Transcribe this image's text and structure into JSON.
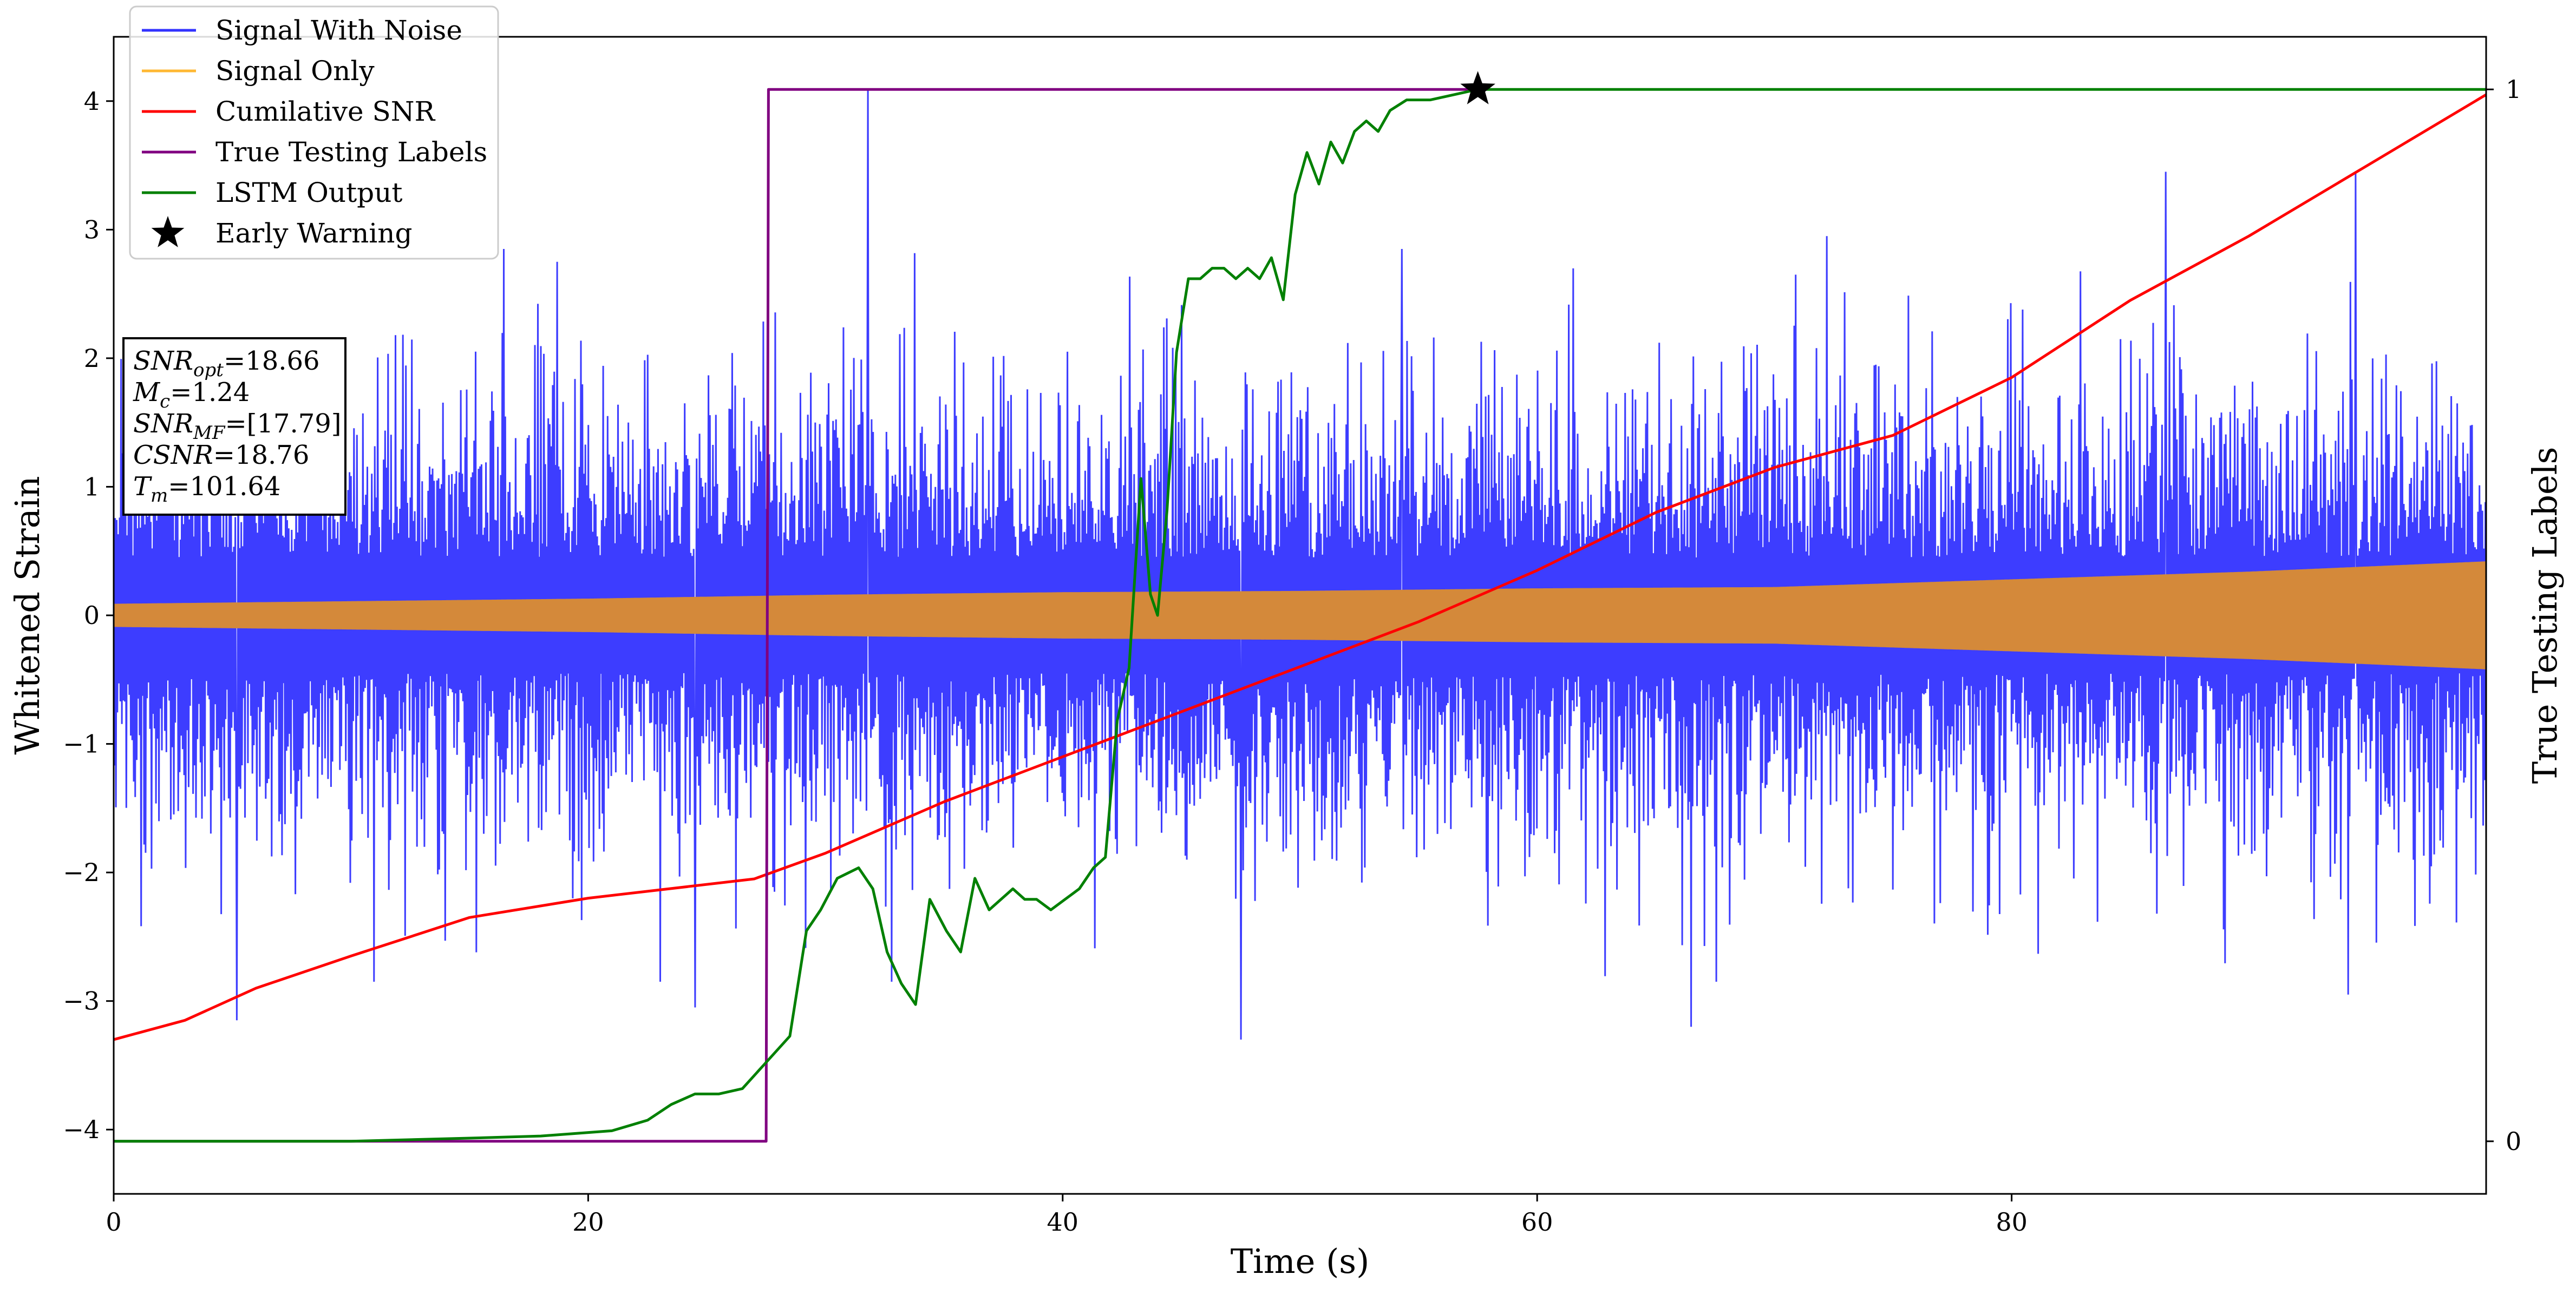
{
  "chart_data": {
    "type": "line",
    "xlabel": "Time (s)",
    "ylabel": "Whitened Strain",
    "y2label": "True Testing Labels",
    "xlim": [
      0,
      100
    ],
    "ylim": [
      -4.5,
      4.5
    ],
    "y2lim": [
      -0.05,
      1.05
    ],
    "x_ticks": [
      0,
      20,
      40,
      60,
      80
    ],
    "y_ticks": [
      -4,
      -3,
      -2,
      -1,
      0,
      1,
      2,
      3,
      4
    ],
    "y_tick_labels": [
      "−4",
      "−3",
      "−2",
      "−1",
      "0",
      "1",
      "2",
      "3",
      "4"
    ],
    "y2_ticks": [
      0,
      1
    ],
    "grid": false,
    "legend_position": "top-left",
    "series": [
      {
        "name": "Signal With Noise",
        "color": "#3333ff",
        "description_axis": "left",
        "x_range": [
          0,
          100
        ],
        "approx_envelope": [
          -2.6,
          2.6
        ],
        "spikes": [
          {
            "x": 5.2,
            "y": -3.15
          },
          {
            "x": 18.7,
            "y": 2.75
          },
          {
            "x": 24.5,
            "y": -3.05
          },
          {
            "x": 31.8,
            "y": 4.1
          },
          {
            "x": 47.5,
            "y": -3.3
          },
          {
            "x": 54.3,
            "y": 2.85
          },
          {
            "x": 66.5,
            "y": -3.2
          },
          {
            "x": 72.2,
            "y": 2.95
          },
          {
            "x": 86.5,
            "y": 3.45
          },
          {
            "x": 94.5,
            "y": 3.45
          },
          {
            "x": 94.2,
            "y": -2.95
          },
          {
            "x": 99.7,
            "y": -1.0
          }
        ]
      },
      {
        "name": "Signal Only",
        "color": "#ffa500",
        "description_axis": "left",
        "amplitude_envelope": {
          "x": [
            0,
            10,
            20,
            30,
            40,
            50,
            60,
            70,
            75,
            80,
            85,
            90,
            95,
            100
          ],
          "amp": [
            0.09,
            0.11,
            0.13,
            0.16,
            0.18,
            0.19,
            0.21,
            0.22,
            0.25,
            0.28,
            0.31,
            0.34,
            0.38,
            0.42
          ]
        }
      },
      {
        "name": "Cumilative SNR",
        "color": "#ff0000",
        "description_axis": "left",
        "x": [
          0,
          3,
          6,
          10,
          15,
          20,
          27,
          30,
          35,
          40,
          45,
          50,
          55,
          60,
          65,
          70,
          72,
          75,
          80,
          85,
          90,
          95,
          100
        ],
        "y": [
          -3.3,
          -3.15,
          -2.9,
          -2.65,
          -2.35,
          -2.2,
          -2.05,
          -1.85,
          -1.45,
          -1.1,
          -0.75,
          -0.4,
          -0.05,
          0.35,
          0.8,
          1.15,
          1.25,
          1.4,
          1.85,
          2.45,
          2.95,
          3.5,
          4.05
        ]
      },
      {
        "name": "True Testing Labels",
        "color": "#800080",
        "description_axis": "right",
        "x": [
          0,
          27.5,
          27.6,
          57.5
        ],
        "y": [
          0,
          0,
          1,
          1
        ]
      },
      {
        "name": "LSTM Output",
        "color": "#008000",
        "description_axis": "right",
        "x": [
          0,
          10,
          15,
          18,
          21,
          22.5,
          23.5,
          24.5,
          25.5,
          26.5,
          27.5,
          28.5,
          29.2,
          29.8,
          30.5,
          31.4,
          32.0,
          32.6,
          33.2,
          33.8,
          34.4,
          35.1,
          35.7,
          36.3,
          36.9,
          37.4,
          37.9,
          38.4,
          38.9,
          39.5,
          40.1,
          40.7,
          41.3,
          41.8,
          42.3,
          42.8,
          43.3,
          43.7,
          44.0,
          44.4,
          44.8,
          45.3,
          45.8,
          46.3,
          46.8,
          47.3,
          47.8,
          48.3,
          48.8,
          49.3,
          49.8,
          50.3,
          50.8,
          51.3,
          51.8,
          52.3,
          52.8,
          53.3,
          53.8,
          54.5,
          55.5,
          57.5,
          100
        ],
        "y": [
          0,
          0,
          0.003,
          0.005,
          0.01,
          0.02,
          0.035,
          0.045,
          0.045,
          0.05,
          0.075,
          0.1,
          0.2,
          0.22,
          0.25,
          0.26,
          0.24,
          0.18,
          0.15,
          0.13,
          0.23,
          0.2,
          0.18,
          0.25,
          0.22,
          0.23,
          0.24,
          0.23,
          0.23,
          0.22,
          0.23,
          0.24,
          0.26,
          0.27,
          0.4,
          0.45,
          0.63,
          0.52,
          0.5,
          0.6,
          0.75,
          0.82,
          0.82,
          0.83,
          0.83,
          0.82,
          0.83,
          0.82,
          0.84,
          0.8,
          0.9,
          0.94,
          0.91,
          0.95,
          0.93,
          0.96,
          0.97,
          0.96,
          0.98,
          0.99,
          0.99,
          1,
          1
        ]
      },
      {
        "name": "Early Warning",
        "color": "#000000",
        "marker": "star",
        "description_axis": "right",
        "x": [
          57.5
        ],
        "y": [
          1
        ]
      }
    ],
    "info_box": [
      {
        "main": "SNR",
        "sub": "opt",
        "rest": "=18.66"
      },
      {
        "main": "M",
        "sub": "c",
        "rest": "=1.24"
      },
      {
        "main": "SNR",
        "sub": "MF",
        "rest": "=[17.79]"
      },
      {
        "main": "CSNR",
        "sub": "",
        "rest": "=18.76"
      },
      {
        "main": "T",
        "sub": "m",
        "rest": "=101.64"
      }
    ]
  }
}
